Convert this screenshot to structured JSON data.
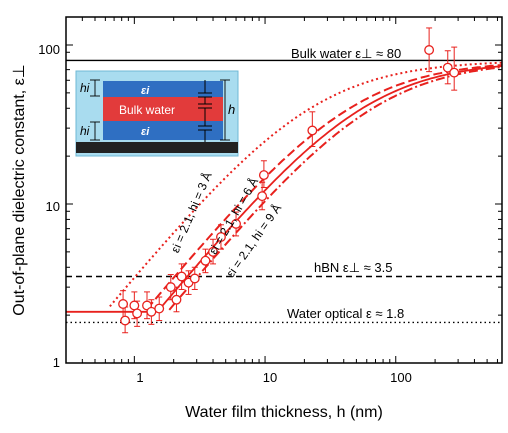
{
  "chart_data": {
    "type": "scatter",
    "xlabel": "Water film thickness, h (nm)",
    "ylabel": "Out-of-plane dielectric constant, ε⊥",
    "x_scale": "log",
    "y_scale": "log",
    "xlim": [
      0.3,
      650
    ],
    "ylim": [
      1,
      150
    ],
    "x_ticks": [
      "1",
      "10",
      "100"
    ],
    "y_ticks": [
      "1",
      "10",
      "100"
    ],
    "colors": {
      "data": "#e8211d",
      "reference": "#000000",
      "inset_outer": "#a9dcef",
      "inset_layer": "#2f6fc2",
      "inset_bulk": "#e23b3b",
      "inset_substrate": "#222222"
    },
    "series": [
      {
        "kind": "points",
        "marker": "open-circle",
        "points": [
          {
            "x": 0.82,
            "y": 2.35,
            "err_lo": 0.5,
            "err_hi": 0.5
          },
          {
            "x": 0.85,
            "y": 1.85,
            "err_lo": 0.3,
            "err_hi": 0.4
          },
          {
            "x": 1.0,
            "y": 2.3,
            "err_lo": 0.4,
            "err_hi": 0.5
          },
          {
            "x": 1.05,
            "y": 2.05,
            "err_lo": 0.35,
            "err_hi": 0.4
          },
          {
            "x": 1.25,
            "y": 2.3,
            "err_lo": 0.4,
            "err_hi": 0.5
          },
          {
            "x": 1.35,
            "y": 2.1,
            "err_lo": 0.35,
            "err_hi": 0.4
          },
          {
            "x": 1.55,
            "y": 2.2,
            "err_lo": 0.35,
            "err_hi": 0.4
          },
          {
            "x": 1.9,
            "y": 3.0,
            "err_lo": 0.5,
            "err_hi": 0.6
          },
          {
            "x": 2.1,
            "y": 2.5,
            "err_lo": 0.4,
            "err_hi": 0.5
          },
          {
            "x": 2.3,
            "y": 3.5,
            "err_lo": 0.6,
            "err_hi": 0.7
          },
          {
            "x": 2.6,
            "y": 3.2,
            "err_lo": 0.5,
            "err_hi": 0.6
          },
          {
            "x": 2.9,
            "y": 3.4,
            "err_lo": 0.5,
            "err_hi": 0.6
          },
          {
            "x": 3.5,
            "y": 4.4,
            "err_lo": 0.7,
            "err_hi": 0.8
          },
          {
            "x": 4.0,
            "y": 5.0,
            "err_lo": 0.8,
            "err_hi": 1.0
          },
          {
            "x": 4.6,
            "y": 6.2,
            "err_lo": 1.0,
            "err_hi": 1.2
          },
          {
            "x": 6.0,
            "y": 7.5,
            "err_lo": 1.2,
            "err_hi": 1.4
          },
          {
            "x": 9.5,
            "y": 11.2,
            "err_lo": 2.0,
            "err_hi": 2.5
          },
          {
            "x": 9.8,
            "y": 15.2,
            "err_lo": 2.5,
            "err_hi": 3.5
          },
          {
            "x": 23,
            "y": 29,
            "err_lo": 6,
            "err_hi": 9
          },
          {
            "x": 180,
            "y": 93,
            "err_lo": 25,
            "err_hi": 35
          },
          {
            "x": 250,
            "y": 72,
            "err_lo": 15,
            "err_hi": 20
          },
          {
            "x": 280,
            "y": 67,
            "err_lo": 15,
            "err_hi": 30
          }
        ]
      },
      {
        "kind": "model",
        "style": "dotted",
        "label": "εi = 2.1, hi = 3 Å",
        "eps_i": 2.1,
        "h_i_nm": 0.3,
        "eps_bulk": 80,
        "x_range": [
          0.65,
          650
        ]
      },
      {
        "kind": "model",
        "style": "dashed",
        "label": "εi = 2.1, hi = 6 Å",
        "eps_i": 2.1,
        "h_i_nm": 0.6,
        "eps_bulk": 80,
        "x_range": [
          1.25,
          650
        ]
      },
      {
        "kind": "model",
        "style": "solid",
        "label": "",
        "eps_i": 2.1,
        "h_i_nm": 0.75,
        "eps_bulk": 80,
        "x_range": [
          0.3,
          650
        ],
        "floor": 2.1
      },
      {
        "kind": "model",
        "style": "dashdot",
        "label": "εi = 2.1, hi = 9 Å",
        "eps_i": 2.1,
        "h_i_nm": 0.9,
        "eps_bulk": 80,
        "x_range": [
          1.85,
          650
        ]
      }
    ],
    "reference_lines": [
      {
        "y": 80,
        "style": "solid",
        "label": "Bulk water ε⊥ ≈ 80"
      },
      {
        "y": 3.5,
        "style": "dashed",
        "label": "hBN ε⊥ ≈ 3.5"
      },
      {
        "y": 1.8,
        "style": "dotted",
        "label": "Water optical ε ≈ 1.8"
      }
    ],
    "inset": {
      "layer_label": "εi",
      "bulk_label": "Bulk water",
      "hi_label": "hi",
      "h_label": "h"
    }
  }
}
